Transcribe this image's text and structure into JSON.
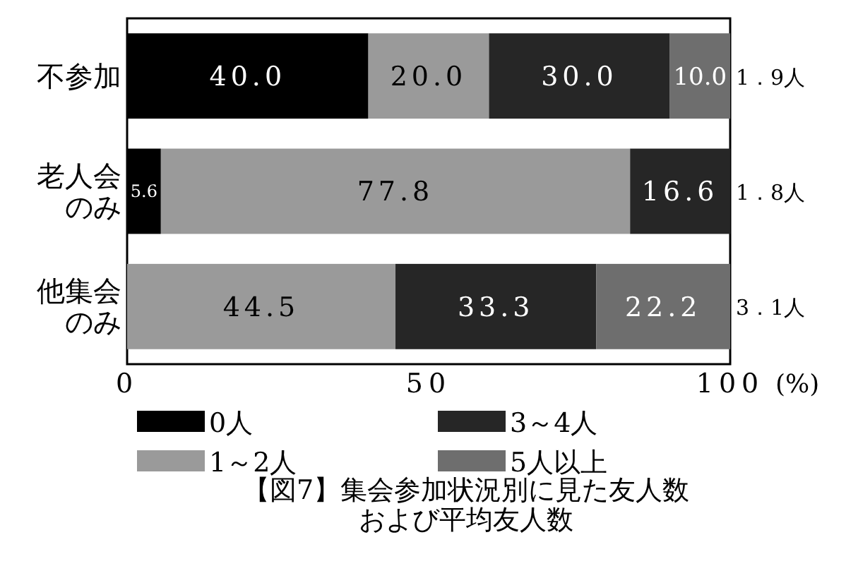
{
  "chart_data": {
    "type": "bar",
    "orientation": "horizontal",
    "stacked": true,
    "title": "【図7】集会参加状況別に見た友人数および平均友人数",
    "xlabel": "(%)",
    "categories": [
      "不参加",
      "老人会のみ",
      "他集会のみ"
    ],
    "xlim": [
      0,
      100
    ],
    "xticks": [
      0,
      50,
      100
    ],
    "legend": "bottom",
    "series": [
      {
        "name": "0人",
        "color": "#000000",
        "values": [
          40.0,
          5.6,
          0
        ],
        "value_labels": [
          "40.0",
          "5.6",
          null
        ]
      },
      {
        "name": "1～2人",
        "color": "#9a9a9a",
        "values": [
          20.0,
          77.8,
          44.5
        ],
        "value_labels": [
          "20.0",
          "77.8",
          "44.5"
        ]
      },
      {
        "name": "3～4人",
        "color": "#262626",
        "values": [
          30.0,
          16.6,
          33.3
        ],
        "value_labels": [
          "30.0",
          "16.6",
          "33.3"
        ]
      },
      {
        "name": "5人以上",
        "color": "#6e6e6e",
        "values": [
          10.0,
          0,
          22.2
        ],
        "value_labels": [
          "10.0",
          null,
          "22.2"
        ]
      }
    ],
    "annotations": [
      "1．9人",
      "1．8人",
      "3．1人"
    ]
  }
}
